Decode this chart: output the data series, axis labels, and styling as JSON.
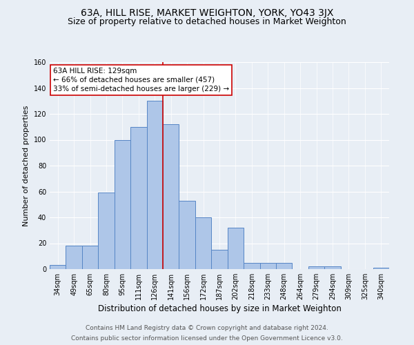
{
  "title": "63A, HILL RISE, MARKET WEIGHTON, YORK, YO43 3JX",
  "subtitle": "Size of property relative to detached houses in Market Weighton",
  "xlabel": "Distribution of detached houses by size in Market Weighton",
  "ylabel": "Number of detached properties",
  "categories": [
    "34sqm",
    "49sqm",
    "65sqm",
    "80sqm",
    "95sqm",
    "111sqm",
    "126sqm",
    "141sqm",
    "156sqm",
    "172sqm",
    "187sqm",
    "202sqm",
    "218sqm",
    "233sqm",
    "248sqm",
    "264sqm",
    "279sqm",
    "294sqm",
    "309sqm",
    "325sqm",
    "340sqm"
  ],
  "values": [
    3,
    18,
    18,
    59,
    100,
    110,
    130,
    112,
    53,
    40,
    15,
    32,
    5,
    5,
    5,
    0,
    2,
    2,
    0,
    0,
    1
  ],
  "bar_color": "#aec6e8",
  "bar_edge_color": "#5585c5",
  "bar_linewidth": 0.7,
  "vline_color": "#cc0000",
  "vline_linewidth": 1.2,
  "vline_pos": 6.5,
  "annotation_line1": "63A HILL RISE: 129sqm",
  "annotation_line2": "← 66% of detached houses are smaller (457)",
  "annotation_line3": "33% of semi-detached houses are larger (229) →",
  "annotation_box_color": "#ffffff",
  "annotation_box_edge_color": "#cc0000",
  "ylim": [
    0,
    160
  ],
  "yticks": [
    0,
    20,
    40,
    60,
    80,
    100,
    120,
    140,
    160
  ],
  "background_color": "#e8eef5",
  "plot_bg_color": "#e8eef5",
  "footer_line1": "Contains HM Land Registry data © Crown copyright and database right 2024.",
  "footer_line2": "Contains public sector information licensed under the Open Government Licence v3.0.",
  "title_fontsize": 10,
  "subtitle_fontsize": 9,
  "xlabel_fontsize": 8.5,
  "ylabel_fontsize": 8,
  "tick_fontsize": 7,
  "annotation_fontsize": 7.5,
  "footer_fontsize": 6.5
}
